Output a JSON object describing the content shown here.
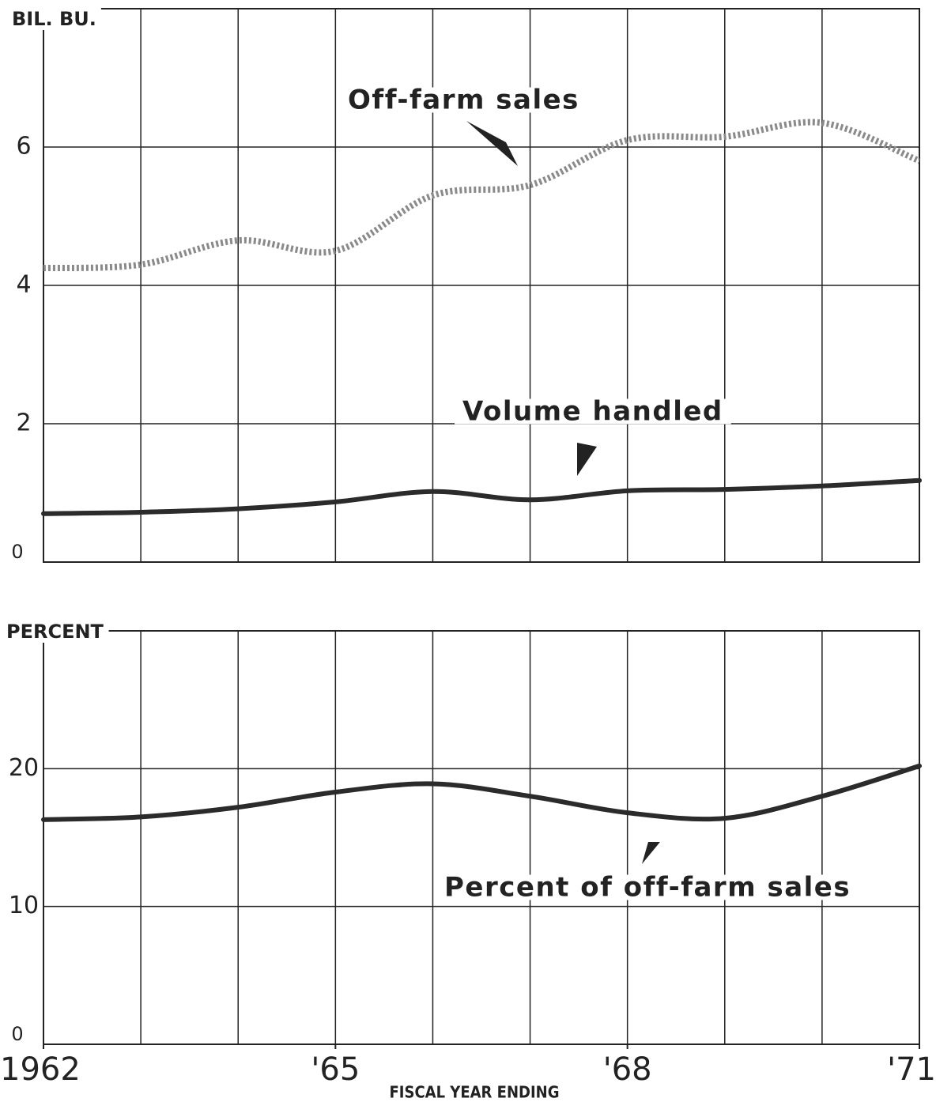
{
  "chart_data": [
    {
      "type": "line",
      "y_label": "BIL. BU.",
      "x": [
        1962,
        1963,
        1964,
        1965,
        1966,
        1967,
        1968,
        1969,
        1970,
        1971
      ],
      "xlim": [
        1962,
        1971
      ],
      "ylim": [
        0,
        8
      ],
      "yticks": [
        0,
        2,
        4,
        6
      ],
      "grid": true,
      "series": [
        {
          "name": "Off-farm sales",
          "color": "#8a8a8a",
          "style": "dotted",
          "values": [
            4.25,
            4.3,
            4.65,
            4.5,
            5.3,
            5.45,
            6.1,
            6.15,
            6.35,
            5.8
          ]
        },
        {
          "name": "Volume handled",
          "color": "#2b2b2b",
          "style": "solid",
          "values": [
            0.7,
            0.72,
            0.77,
            0.87,
            1.02,
            0.9,
            1.03,
            1.05,
            1.1,
            1.18
          ]
        }
      ]
    },
    {
      "type": "line",
      "y_label": "PERCENT",
      "x_label": "FISCAL YEAR ENDING",
      "x": [
        1962,
        1963,
        1964,
        1965,
        1966,
        1967,
        1968,
        1969,
        1970,
        1971
      ],
      "xlim": [
        1962,
        1971
      ],
      "xticks": [
        {
          "value": 1962,
          "label": "1962"
        },
        {
          "value": 1965,
          "label": "'65"
        },
        {
          "value": 1968,
          "label": "'68"
        },
        {
          "value": 1971,
          "label": "'71"
        }
      ],
      "ylim": [
        0,
        30
      ],
      "yticks": [
        0,
        10,
        20
      ],
      "grid": true,
      "series": [
        {
          "name": "Percent of off-farm sales",
          "color": "#2b2b2b",
          "style": "solid",
          "values": [
            16.3,
            16.5,
            17.2,
            18.3,
            18.9,
            18.0,
            16.8,
            16.4,
            18.0,
            20.2
          ]
        }
      ]
    }
  ]
}
